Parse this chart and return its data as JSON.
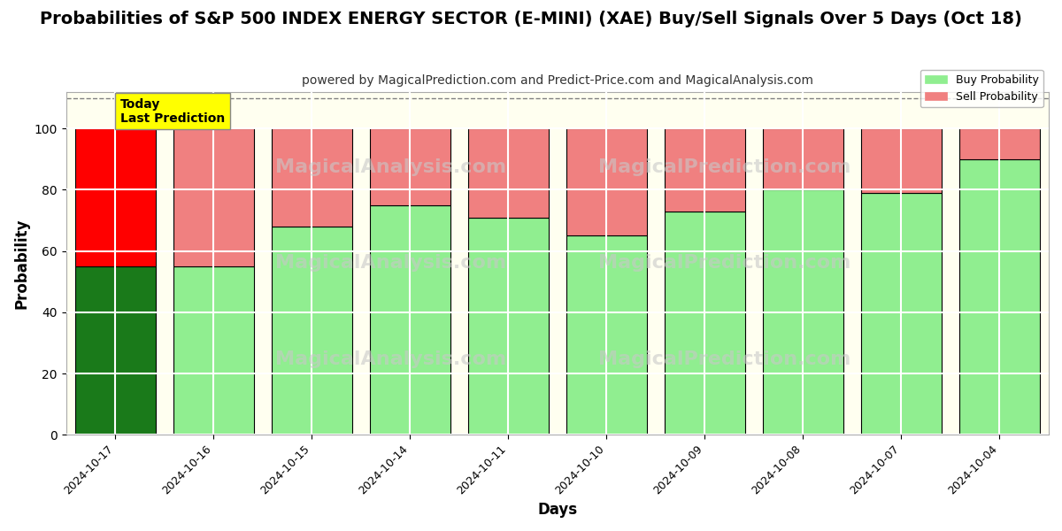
{
  "title": "Probabilities of S&P 500 INDEX ENERGY SECTOR (E-MINI) (XAE) Buy/Sell Signals Over 5 Days (Oct 18)",
  "subtitle": "powered by MagicalPrediction.com and Predict-Price.com and MagicalAnalysis.com",
  "xlabel": "Days",
  "ylabel": "Probability",
  "dates": [
    "2024-10-17",
    "2024-10-16",
    "2024-10-15",
    "2024-10-14",
    "2024-10-11",
    "2024-10-10",
    "2024-10-09",
    "2024-10-08",
    "2024-10-07",
    "2024-10-04"
  ],
  "buy_values": [
    55,
    55,
    68,
    75,
    71,
    65,
    73,
    80,
    79,
    90
  ],
  "sell_values": [
    45,
    45,
    32,
    25,
    29,
    35,
    27,
    20,
    21,
    10
  ],
  "today_buy_color": "#1a7a1a",
  "today_sell_color": "#ff0000",
  "normal_buy_color": "#90EE90",
  "normal_sell_color": "#f08080",
  "legend_buy_color": "#90EE90",
  "legend_sell_color": "#f08080",
  "today_annotation_bg": "#ffff00",
  "today_annotation_text": "Today\nLast Prediction",
  "ylim": [
    0,
    112
  ],
  "yticks": [
    0,
    20,
    40,
    60,
    80,
    100
  ],
  "dashed_line_y": 110,
  "bar_edgecolor": "#000000",
  "bar_linewidth": 0.8,
  "plot_bg_color": "#fffff0",
  "fig_bg_color": "#ffffff",
  "grid_color": "#ffffff",
  "grid_linewidth": 1.5,
  "title_fontsize": 14,
  "subtitle_fontsize": 10,
  "axis_label_fontsize": 12,
  "tick_fontsize": 9,
  "bar_width": 0.82
}
